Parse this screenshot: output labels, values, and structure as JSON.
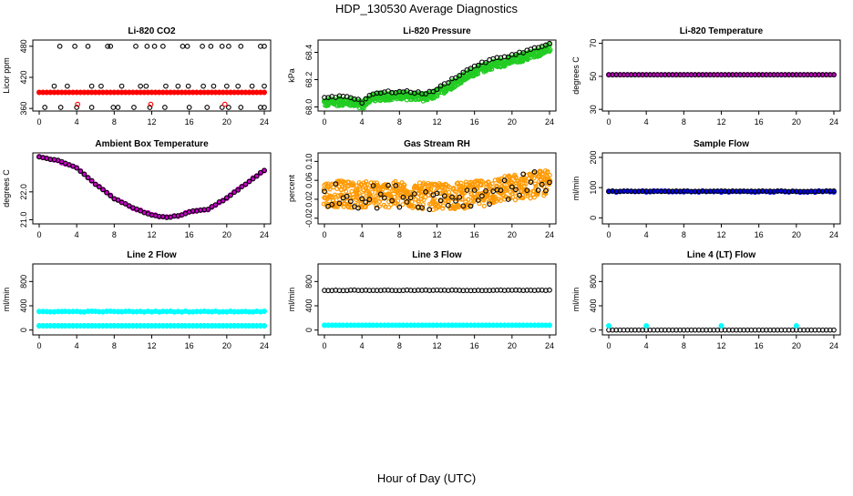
{
  "figure": {
    "title": "HDP_130530  Average Diagnostics",
    "xlabel": "Hour of Day (UTC)"
  },
  "chart_data": [
    {
      "id": "co2",
      "type": "scatter",
      "title": "Li-820 CO2",
      "ylabel": "Licor ppm",
      "xlim": [
        0,
        24
      ],
      "xticks": [
        0,
        4,
        8,
        12,
        16,
        20,
        24
      ],
      "ylim": [
        355,
        492
      ],
      "yticks": [
        360,
        420,
        480
      ],
      "ytick_labels": [
        "360",
        "420",
        "480"
      ],
      "series": [
        {
          "name": "li820_co2_median",
          "color": "#ff0000",
          "marker": "filled",
          "const": 391,
          "noise": 0
        },
        {
          "name": "li820_co2_outliers_high",
          "color": "#000000",
          "marker": "open",
          "xs": [
            2.2,
            3.8,
            5.2,
            7.3,
            7.6,
            10.3,
            11.5,
            12.3,
            13.2,
            15.3,
            15.8,
            17.4,
            18.3,
            19.5,
            20.2,
            21.5,
            23.6,
            24.0
          ],
          "const": 480,
          "noise": 0
        },
        {
          "name": "li820_co2_outliers_mid",
          "color": "#000000",
          "marker": "open",
          "xs": [
            1.6,
            3.0,
            5.6,
            6.6,
            8.8,
            10.8,
            11.4,
            13.5,
            14.8,
            15.9,
            17.5,
            18.6,
            20.0,
            21.2,
            22.7,
            24.0
          ],
          "const": 403,
          "noise": 0
        },
        {
          "name": "li820_co2_outliers_low",
          "color": "#000000",
          "marker": "open",
          "xs": [
            0.6,
            2.3,
            4.0,
            5.6,
            7.9,
            8.4,
            10.1,
            11.8,
            13.4,
            16.0,
            17.9,
            19.5,
            20.2,
            21.5,
            23.6,
            24.0
          ],
          "const": 362,
          "noise": 0
        },
        {
          "name": "li820_co2_red_outliers",
          "color": "#ff0000",
          "marker": "open",
          "xs": [
            4.1,
            11.9,
            19.8
          ],
          "const": 368,
          "noise": 0
        }
      ]
    },
    {
      "id": "pressure",
      "type": "scatter",
      "title": "Li-820 Pressure",
      "ylabel": "kPa",
      "xlim": [
        0,
        24
      ],
      "xticks": [
        0,
        4,
        8,
        12,
        16,
        20,
        24
      ],
      "ylim": [
        67.97,
        68.49
      ],
      "yticks": [
        68.0,
        68.2,
        68.4
      ],
      "ytick_labels": [
        "68.0",
        "68.2",
        "68.4"
      ],
      "series": [
        {
          "name": "pressure_band",
          "color": "#22cc22",
          "marker": "band",
          "anchors": [
            [
              0,
              68.03
            ],
            [
              2,
              68.04
            ],
            [
              3.5,
              68.03
            ],
            [
              4,
              68.01
            ],
            [
              5,
              68.07
            ],
            [
              7,
              68.08
            ],
            [
              9,
              68.08
            ],
            [
              11,
              68.07
            ],
            [
              12,
              68.1
            ],
            [
              14,
              68.18
            ],
            [
              16,
              68.26
            ],
            [
              18,
              68.31
            ],
            [
              20,
              68.34
            ],
            [
              22,
              68.38
            ],
            [
              24,
              68.43
            ]
          ],
          "half_width": 0.03
        },
        {
          "name": "pressure_points",
          "color": "#000000",
          "marker": "open",
          "anchors": [
            [
              0,
              68.07
            ],
            [
              2,
              68.08
            ],
            [
              3.5,
              68.06
            ],
            [
              4,
              68.03
            ],
            [
              5,
              68.1
            ],
            [
              7,
              68.11
            ],
            [
              9,
              68.11
            ],
            [
              11,
              68.1
            ],
            [
              12,
              68.13
            ],
            [
              14,
              68.22
            ],
            [
              16,
              68.3
            ],
            [
              18,
              68.35
            ],
            [
              20,
              68.38
            ],
            [
              22,
              68.42
            ],
            [
              24,
              68.46
            ]
          ],
          "noise": 0.008
        }
      ]
    },
    {
      "id": "licor_temp",
      "type": "scatter",
      "title": "Li-820 Temperature",
      "ylabel": "degrees C",
      "xlim": [
        0,
        24
      ],
      "xticks": [
        0,
        4,
        8,
        12,
        16,
        20,
        24
      ],
      "ylim": [
        29,
        72
      ],
      "yticks": [
        30,
        50,
        70
      ],
      "ytick_labels": [
        "30",
        "50",
        "70"
      ],
      "series": [
        {
          "name": "licor_temp_band",
          "color": "#cc00cc",
          "marker": "filled",
          "const": 51,
          "noise": 0
        },
        {
          "name": "licor_temp_points",
          "color": "#000000",
          "marker": "open",
          "const": 51,
          "noise": 0
        }
      ]
    },
    {
      "id": "ambient_box",
      "type": "scatter",
      "title": "Ambient Box Temperature",
      "ylabel": "degrees C",
      "xlim": [
        0,
        24
      ],
      "xticks": [
        0,
        4,
        8,
        12,
        16,
        20,
        24
      ],
      "ylim": [
        20.85,
        23.4
      ],
      "yticks": [
        21.0,
        22.0
      ],
      "ytick_labels": [
        "21.0",
        "22.0"
      ],
      "series": [
        {
          "name": "box_temp_band",
          "color": "#cc00cc",
          "marker": "filled",
          "anchors": [
            [
              0,
              23.25
            ],
            [
              2,
              23.12
            ],
            [
              4,
              22.86
            ],
            [
              6,
              22.28
            ],
            [
              8,
              21.76
            ],
            [
              10,
              21.42
            ],
            [
              12,
              21.18
            ],
            [
              13.5,
              21.08
            ],
            [
              15,
              21.15
            ],
            [
              16,
              21.28
            ],
            [
              18,
              21.38
            ],
            [
              20,
              21.78
            ],
            [
              22,
              22.28
            ],
            [
              24,
              22.78
            ]
          ],
          "noise": 0.02
        },
        {
          "name": "box_temp_points",
          "color": "#000000",
          "marker": "open",
          "anchors": [
            [
              0,
              23.25
            ],
            [
              2,
              23.12
            ],
            [
              4,
              22.86
            ],
            [
              6,
              22.28
            ],
            [
              8,
              21.76
            ],
            [
              10,
              21.42
            ],
            [
              12,
              21.18
            ],
            [
              13.5,
              21.08
            ],
            [
              15,
              21.15
            ],
            [
              16,
              21.28
            ],
            [
              18,
              21.38
            ],
            [
              20,
              21.78
            ],
            [
              22,
              22.28
            ],
            [
              24,
              22.78
            ]
          ],
          "noise": 0.02
        }
      ]
    },
    {
      "id": "gas_rh",
      "type": "scatter",
      "title": "Gas Stream RH",
      "ylabel": "percent",
      "xlim": [
        0,
        24
      ],
      "xticks": [
        0,
        4,
        8,
        12,
        16,
        20,
        24
      ],
      "ylim": [
        -0.032,
        0.118
      ],
      "yticks": [
        -0.02,
        0.02,
        0.06,
        0.1
      ],
      "ytick_labels": [
        "-0.02",
        "0.02",
        "0.06",
        "0.10"
      ],
      "series": [
        {
          "name": "rh_band",
          "color": "#ff9900",
          "marker": "band",
          "anchors": [
            [
              0,
              0.032
            ],
            [
              4,
              0.03
            ],
            [
              8,
              0.03
            ],
            [
              12,
              0.025
            ],
            [
              16,
              0.03
            ],
            [
              20,
              0.045
            ],
            [
              24,
              0.055
            ]
          ],
          "half_width": 0.028
        },
        {
          "name": "rh_points",
          "color": "#000000",
          "marker": "open",
          "anchors": [
            [
              0,
              0.03
            ],
            [
              4,
              0.025
            ],
            [
              8,
              0.028
            ],
            [
              12,
              0.022
            ],
            [
              16,
              0.028
            ],
            [
              20,
              0.045
            ],
            [
              24,
              0.06
            ]
          ],
          "noise": 0.025
        }
      ]
    },
    {
      "id": "sample_flow",
      "type": "scatter",
      "title": "Sample Flow",
      "ylabel": "ml/min",
      "xlim": [
        0,
        24
      ],
      "xticks": [
        0,
        4,
        8,
        12,
        16,
        20,
        24
      ],
      "ylim": [
        -20,
        215
      ],
      "yticks": [
        0,
        100,
        200
      ],
      "ytick_labels": [
        "0",
        "100",
        "200"
      ],
      "series": [
        {
          "name": "sample_flow_band",
          "color": "#0000ff",
          "marker": "filled",
          "const": 87,
          "noise": 2
        },
        {
          "name": "sample_flow_points",
          "color": "#000000",
          "marker": "open",
          "const": 88,
          "noise": 1
        }
      ]
    },
    {
      "id": "line2_flow",
      "type": "scatter",
      "title": "Line 2 Flow",
      "ylabel": "ml/min",
      "xlim": [
        0,
        24
      ],
      "xticks": [
        0,
        4,
        8,
        12,
        16,
        20,
        24
      ],
      "ylim": [
        -80,
        1090
      ],
      "yticks": [
        0,
        400,
        800
      ],
      "ytick_labels": [
        "0",
        "400",
        "800"
      ],
      "series": [
        {
          "name": "line2_flow_cyan",
          "color": "#00ffff",
          "marker": "filled",
          "const": 305,
          "noise": 6
        },
        {
          "name": "line2_flow_points",
          "color": "#000000",
          "marker": "open",
          "const": 70,
          "noise": 0
        },
        {
          "name": "line2_flow_cyan_low",
          "color": "#00ffff",
          "marker": "filled",
          "const": 70,
          "noise": 0
        }
      ]
    },
    {
      "id": "line3_flow",
      "type": "scatter",
      "title": "Line 3 Flow",
      "ylabel": "ml/min",
      "xlim": [
        0,
        24
      ],
      "xticks": [
        0,
        4,
        8,
        12,
        16,
        20,
        24
      ],
      "ylim": [
        -80,
        1090
      ],
      "yticks": [
        0,
        400,
        800
      ],
      "ytick_labels": [
        "0",
        "400",
        "800"
      ],
      "series": [
        {
          "name": "line3_flow_cyan",
          "color": "#00ffff",
          "marker": "filled",
          "const": 80,
          "noise": 0
        },
        {
          "name": "line3_flow_points",
          "color": "#000000",
          "marker": "open",
          "const": 655,
          "noise": 4
        }
      ]
    },
    {
      "id": "line4_flow",
      "type": "scatter",
      "title": "Line 4 (LT) Flow",
      "ylabel": "ml/min",
      "xlim": [
        0,
        24
      ],
      "xticks": [
        0,
        4,
        8,
        12,
        16,
        20,
        24
      ],
      "ylim": [
        -80,
        1090
      ],
      "yticks": [
        0,
        400,
        800
      ],
      "ytick_labels": [
        "0",
        "400",
        "800"
      ],
      "series": [
        {
          "name": "line4_flow_points",
          "color": "#000000",
          "marker": "open",
          "const": 0,
          "noise": 0
        },
        {
          "name": "line4_flow_spikes",
          "color": "#00ffff",
          "marker": "filled",
          "xs": [
            0.0,
            4.0,
            12.0,
            20.0
          ],
          "const": 70,
          "noise": 0
        }
      ]
    }
  ]
}
